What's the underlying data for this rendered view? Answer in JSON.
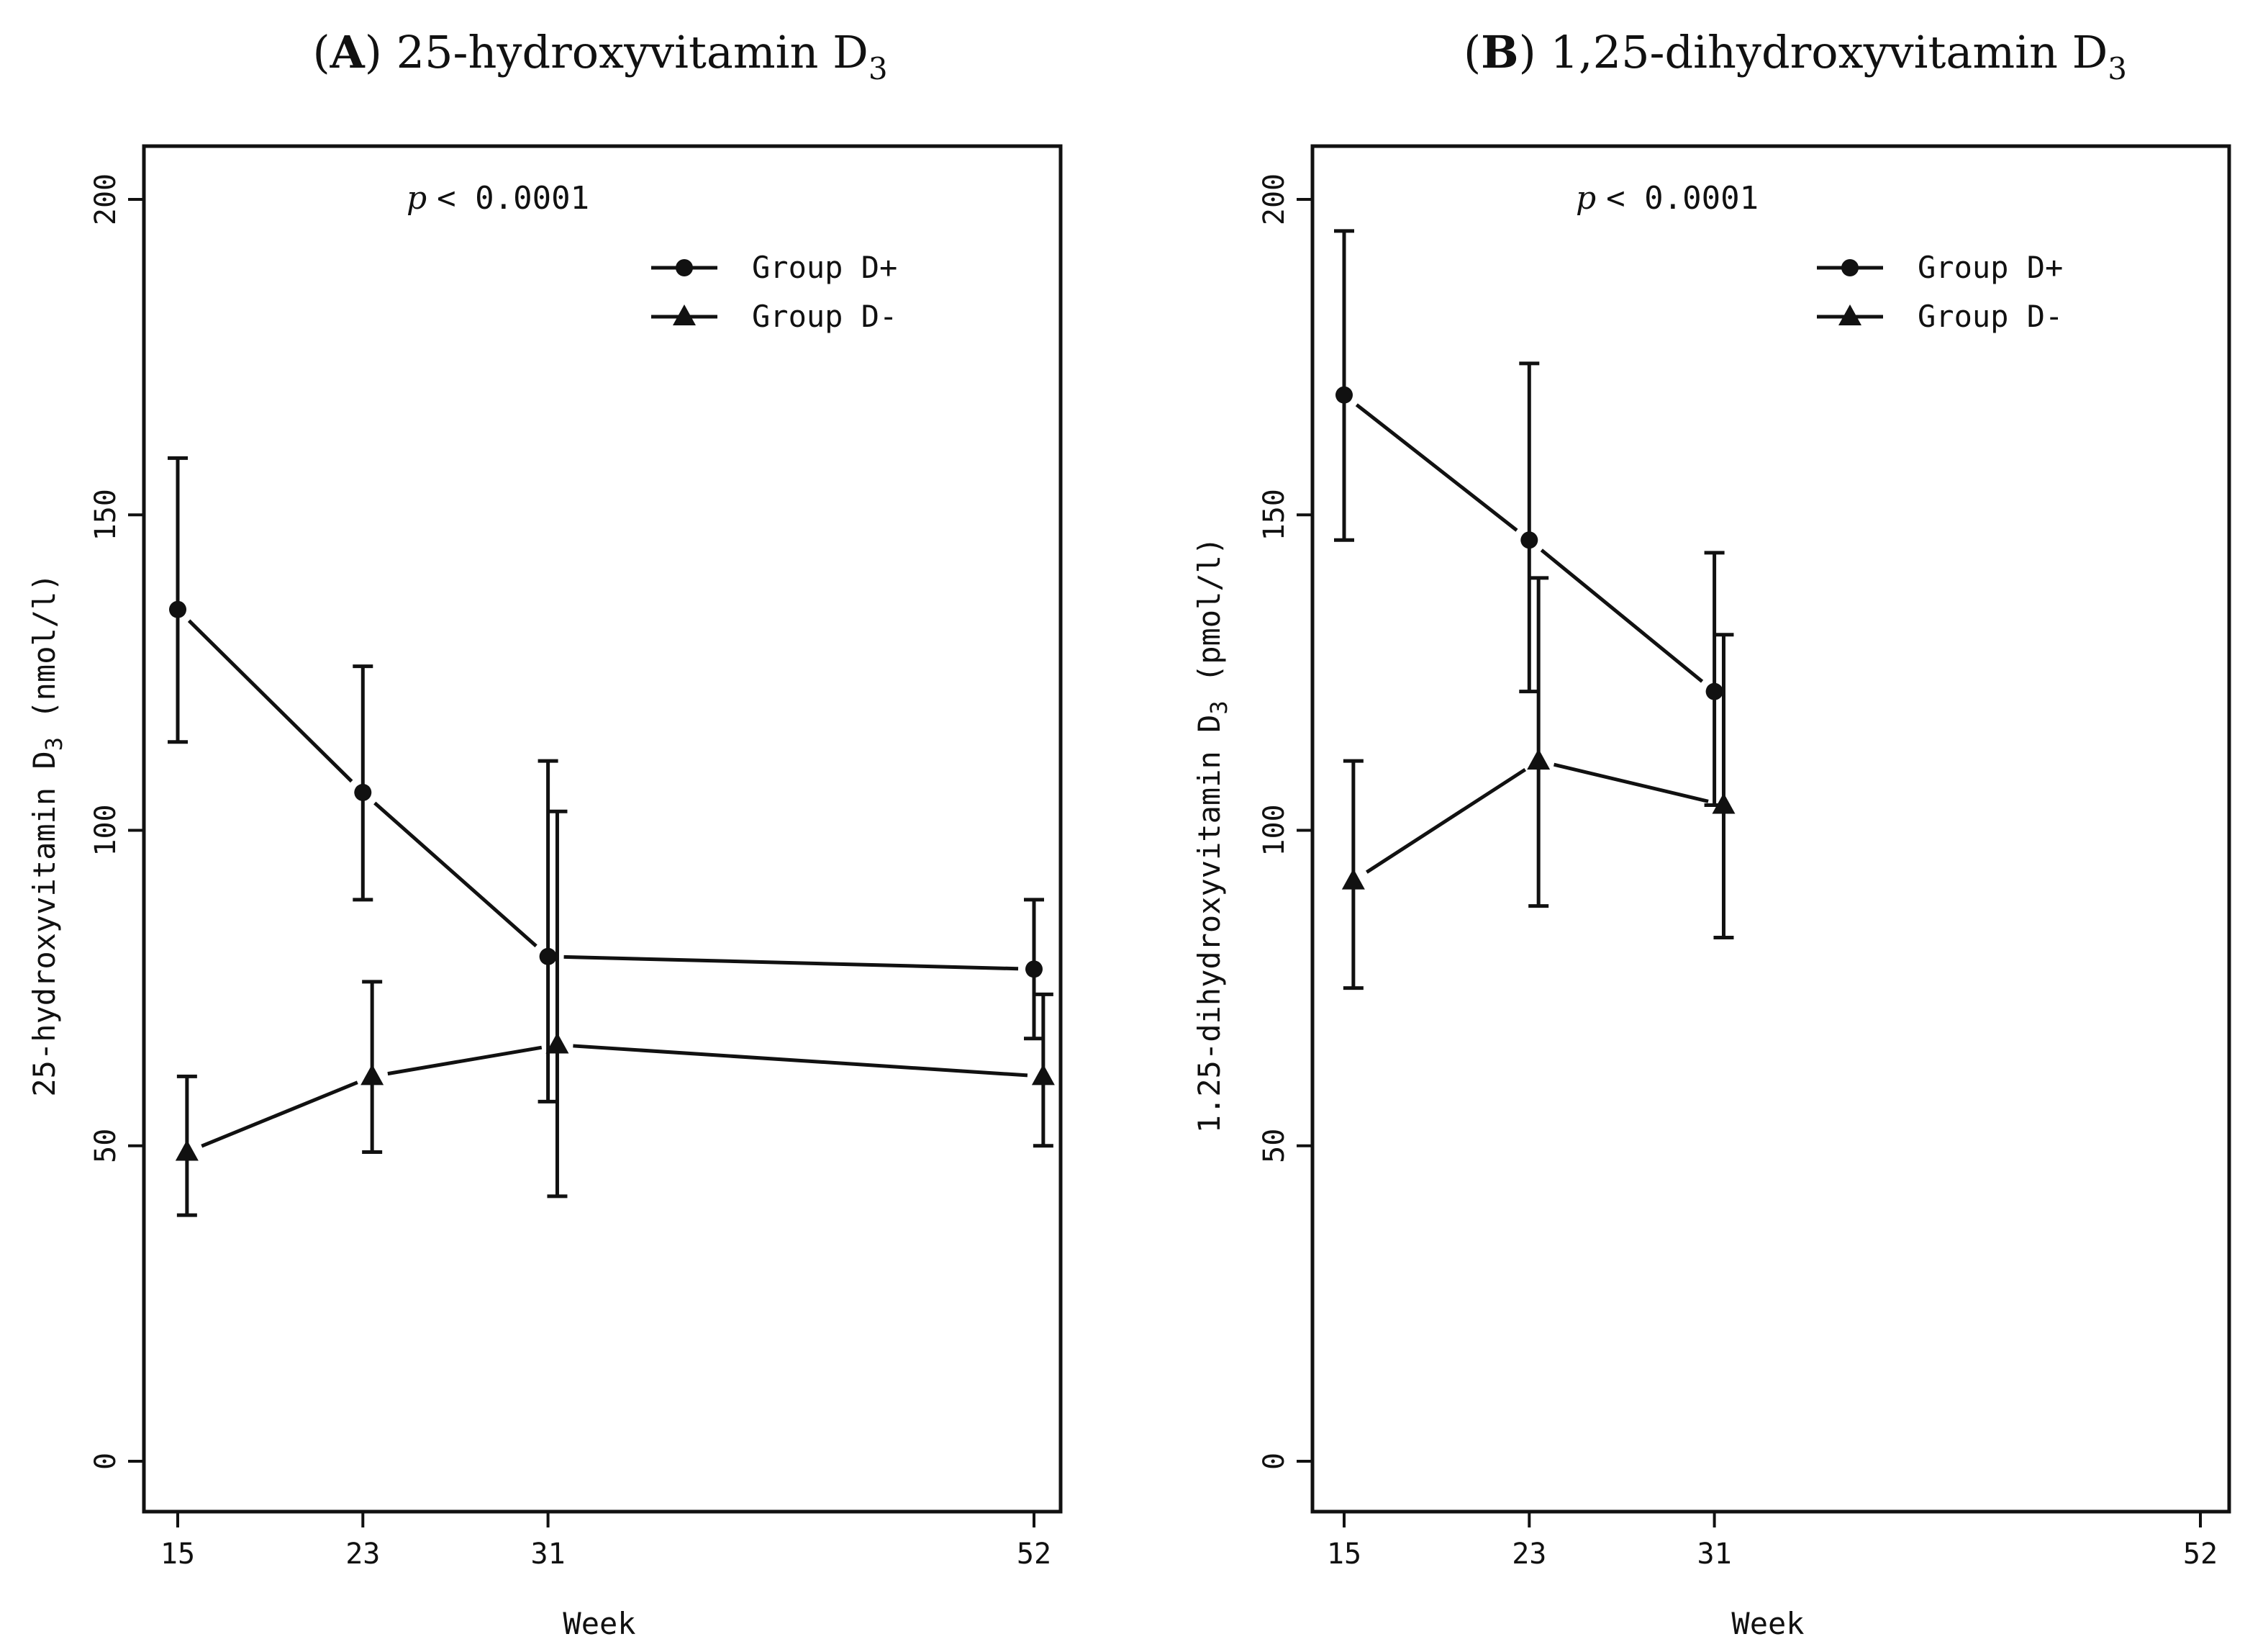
{
  "chart_data": [
    {
      "type": "line",
      "panel_letter": "A",
      "title": "25-hydroxyvitamin D",
      "title_subscript": "3",
      "annotation": "< 0.0001",
      "annotation_symbol": "p",
      "xlabel": "Week",
      "ylabel": "25-hydroxyvitamin D",
      "ylabel_subscript": "3",
      "ylabel_unit": "(nmol/l)",
      "x": [
        15,
        23,
        31,
        52
      ],
      "xlim": [
        13.8,
        53.8
      ],
      "ylim": [
        -8,
        208
      ],
      "yticks": [
        0,
        50,
        100,
        150,
        200
      ],
      "legend": {
        "position": "top-right"
      },
      "series": [
        {
          "name": "Group D+",
          "marker": "circle",
          "offset": 0,
          "x": [
            15,
            23,
            31,
            52
          ],
          "values": [
            135,
            106,
            80,
            78
          ],
          "err_low": [
            114,
            89,
            57,
            67
          ],
          "err_high": [
            159,
            126,
            111,
            89
          ]
        },
        {
          "name": "Group D-",
          "marker": "triangle",
          "offset": 0.4,
          "x": [
            15,
            23,
            31,
            52
          ],
          "values": [
            49,
            61,
            66,
            61
          ],
          "err_low": [
            39,
            49,
            42,
            50
          ],
          "err_high": [
            61,
            76,
            103,
            74
          ]
        }
      ]
    },
    {
      "type": "line",
      "panel_letter": "B",
      "title": "1,25-dihydroxyvitamin D",
      "title_subscript": "3",
      "annotation": "< 0.0001",
      "annotation_symbol": "p",
      "xlabel": "Week",
      "ylabel": "1.25-dihydroxyvitamin D",
      "ylabel_subscript": "3",
      "ylabel_unit": "(pmol/l)",
      "x": [
        15,
        23,
        31,
        52
      ],
      "xlim": [
        13.8,
        53.8
      ],
      "ylim": [
        -8,
        208
      ],
      "yticks": [
        0,
        50,
        100,
        150,
        200
      ],
      "legend": {
        "position": "top-right"
      },
      "series": [
        {
          "name": "Group D+",
          "marker": "circle",
          "offset": 0,
          "x": [
            15,
            23,
            31
          ],
          "values": [
            169,
            146,
            122
          ],
          "err_low": [
            146,
            122,
            104
          ],
          "err_high": [
            195,
            174,
            144
          ]
        },
        {
          "name": "Group D-",
          "marker": "triangle",
          "offset": 0.4,
          "x": [
            15,
            23,
            31
          ],
          "values": [
            92,
            111,
            104
          ],
          "err_low": [
            75,
            88,
            83
          ],
          "err_high": [
            111,
            140,
            131
          ]
        }
      ]
    }
  ]
}
